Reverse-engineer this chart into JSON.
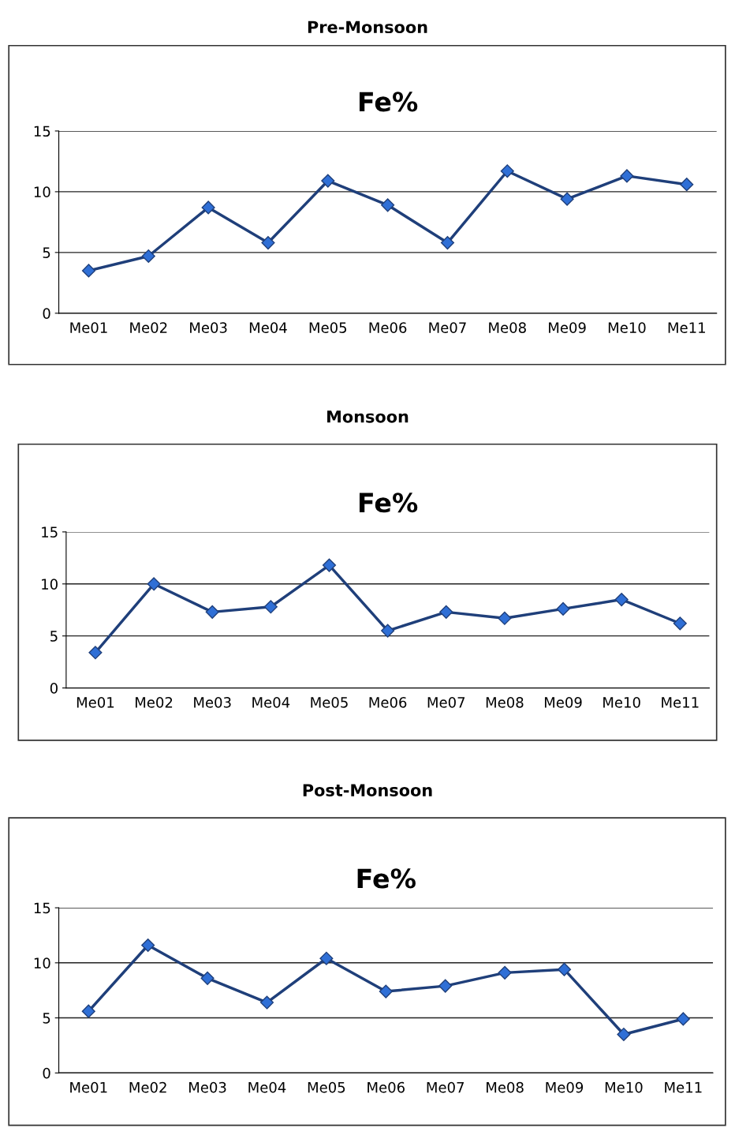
{
  "chart_data": [
    {
      "type": "line",
      "title": "Pre-Monsoon",
      "subtitle": "Fe%",
      "categories": [
        "Me01",
        "Me02",
        "Me03",
        "Me04",
        "Me05",
        "Me06",
        "Me07",
        "Me08",
        "Me09",
        "Me10",
        "Me11"
      ],
      "series": [
        {
          "color": "#1f3f7a",
          "values": [
            3.5,
            4.7,
            8.7,
            5.8,
            10.9,
            8.9,
            5.8,
            11.7,
            9.4,
            11.3,
            10.6
          ]
        }
      ],
      "ylim": [
        0,
        15
      ],
      "yticks": [
        0,
        5,
        10,
        15
      ],
      "grid": "y",
      "marker": "diamond",
      "line_style": "solid",
      "legend": false
    },
    {
      "type": "line",
      "title": "Monsoon",
      "subtitle": "Fe%",
      "categories": [
        "Me01",
        "Me02",
        "Me03",
        "Me04",
        "Me05",
        "Me06",
        "Me07",
        "Me08",
        "Me09",
        "Me10",
        "Me11"
      ],
      "series": [
        {
          "color": "#1f3f7a",
          "values": [
            3.4,
            10.0,
            7.3,
            7.8,
            11.8,
            5.5,
            7.3,
            6.7,
            7.6,
            8.5,
            6.2
          ]
        }
      ],
      "ylim": [
        0,
        15
      ],
      "yticks": [
        0,
        5,
        10,
        15
      ],
      "grid": "y",
      "marker": "diamond",
      "line_style": "solid",
      "legend": false
    },
    {
      "type": "line",
      "title": "Post-Monsoon",
      "subtitle": "Fe%",
      "categories": [
        "Me01",
        "Me02",
        "Me03",
        "Me04",
        "Me05",
        "Me06",
        "Me07",
        "Me08",
        "Me09",
        "Me10",
        "Me11"
      ],
      "series": [
        {
          "color": "#1f3f7a",
          "values": [
            5.6,
            11.6,
            8.6,
            6.4,
            10.4,
            7.4,
            7.9,
            9.1,
            9.4,
            3.5,
            4.9
          ]
        }
      ],
      "ylim": [
        0,
        15
      ],
      "yticks": [
        0,
        5,
        10,
        15
      ],
      "grid": "y",
      "marker": "diamond",
      "line_style": "solid",
      "legend": false
    }
  ]
}
